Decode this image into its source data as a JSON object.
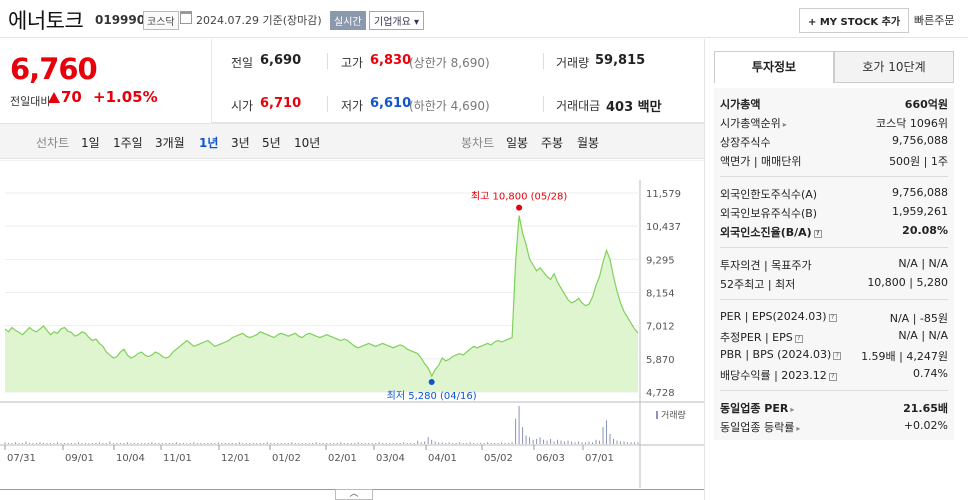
{
  "header": {
    "name": "에너토크",
    "code": "019990",
    "market": "코스닥",
    "date": "2024.07.29 기준(장마감)",
    "live_label": "실시간",
    "company_btn": "기업개요",
    "mystock_btn": "+ MY STOCK 추가",
    "quick_order": "빠른주문"
  },
  "price": {
    "current": "6,760",
    "change_label": "전일대비",
    "change": "70",
    "change_pct": "+1.05%"
  },
  "stats": {
    "prev_label": "전일",
    "prev": "6,690",
    "high_label": "고가",
    "high": "6,830",
    "upper_limit": "(상한가 8,690)",
    "volume_label": "거래량",
    "volume": "59,815",
    "open_label": "시가",
    "open": "6,710",
    "low_label": "저가",
    "low": "6,610",
    "lower_limit": "(하한가 4,690)",
    "amount_label": "거래대금",
    "amount": "403 백만"
  },
  "toolbar": {
    "line_label": "선차트",
    "line_periods": [
      "1일",
      "1주일",
      "3개월",
      "1년",
      "3년",
      "5년",
      "10년"
    ],
    "selected_period": "1년",
    "candle_label": "봉차트",
    "candle_periods": [
      "일봉",
      "주봉",
      "월봉"
    ]
  },
  "chart_data": {
    "type": "area",
    "y_ticks": [
      "11,579",
      "10,437",
      "9,295",
      "8,154",
      "7,012",
      "5,870",
      "4,728"
    ],
    "ylim": [
      4728,
      11579
    ],
    "x_ticks": [
      "07/31",
      "09/01",
      "10/04",
      "11/01",
      "12/01",
      "01/02",
      "02/01",
      "03/04",
      "04/01",
      "05/02",
      "06/03",
      "07/01"
    ],
    "high_annotation": "최고 10,800 (05/28)",
    "low_annotation": "최저 5,280 (04/16)",
    "high_value": 10800,
    "low_value": 5280,
    "volume_label": "거래량",
    "series": [
      {
        "values": [
          6900,
          6800,
          6950,
          6850,
          6780,
          6700,
          6820,
          6950,
          6850,
          6800,
          6900,
          7000,
          6850,
          6700,
          6800,
          6750,
          6900,
          6950,
          6820,
          6780,
          6650,
          6700,
          6800,
          6750,
          6600,
          6500,
          6550,
          6400,
          6300,
          6100,
          6000,
          5900,
          5950,
          6100,
          6200,
          6000,
          5900,
          5950,
          6050,
          6100,
          6000,
          5950,
          6000,
          6100,
          6050,
          5950,
          5900,
          5950,
          6100,
          6200,
          6300,
          6400,
          6500,
          6400,
          6300,
          6350,
          6400,
          6450,
          6500,
          6400,
          6300,
          6350,
          6400,
          6450,
          6500,
          6600,
          6650,
          6700,
          6750,
          6650,
          6600,
          6650,
          6700,
          6800,
          6750,
          6700,
          6650,
          6600,
          6700,
          6750,
          6700,
          6650,
          6700,
          6750,
          6650,
          6600,
          6700,
          6750,
          6700,
          6650,
          6600,
          6650,
          6700,
          6650,
          6600,
          6550,
          6500,
          6550,
          6500,
          6400,
          6300,
          6250,
          6300,
          6350,
          6400,
          6350,
          6300,
          6350,
          6400,
          6350,
          6300,
          6250,
          6300,
          6350,
          6300,
          6200,
          6150,
          6100,
          6050,
          5900,
          5700,
          5550,
          5280,
          5500,
          5650,
          5900,
          5800,
          5850,
          5950,
          6000,
          6050,
          6000,
          6100,
          6200,
          6300,
          6250,
          6300,
          6350,
          6400,
          6350,
          6450,
          6500,
          6450,
          6500,
          6550,
          6600,
          9200,
          10800,
          10200,
          9800,
          9300,
          9100,
          8900,
          9000,
          8850,
          8700,
          8600,
          8800,
          8500,
          8300,
          8100,
          7900,
          7800,
          7850,
          7950,
          7800,
          7700,
          7750,
          8000,
          8400,
          8700,
          9200,
          9600,
          9300,
          8700,
          8200,
          7800,
          7500,
          7300,
          7100,
          6900,
          6760
        ]
      }
    ],
    "volume": [
      2,
      1,
      1,
      2,
      1,
      1,
      3,
      1,
      1,
      1,
      2,
      1,
      1,
      1,
      1,
      2,
      1,
      1,
      1,
      1,
      1,
      2,
      1,
      1,
      1,
      1,
      1,
      2,
      1,
      1,
      3,
      1,
      1,
      1,
      1,
      2,
      1,
      1,
      1,
      1,
      1,
      1,
      2,
      1,
      1,
      1,
      1,
      1,
      1,
      2,
      1,
      1,
      1,
      1,
      2,
      1,
      1,
      1,
      1,
      1,
      1,
      2,
      1,
      1,
      1,
      1,
      1,
      2,
      1,
      1,
      1,
      1,
      1,
      1,
      1,
      2,
      1,
      1,
      1,
      1,
      1,
      1,
      2,
      1,
      1,
      1,
      1,
      1,
      1,
      2,
      1,
      1,
      1,
      1,
      1,
      1,
      2,
      1,
      1,
      1,
      1,
      2,
      1,
      1,
      1,
      1,
      1,
      2,
      1,
      1,
      1,
      1,
      1,
      1,
      2,
      1,
      1,
      1,
      4,
      2,
      3,
      8,
      5,
      3,
      2,
      2,
      1,
      2,
      1,
      1,
      2,
      1,
      1,
      2,
      1,
      1,
      1,
      1,
      2,
      1,
      1,
      1,
      2,
      1,
      1,
      2,
      30,
      45,
      20,
      10,
      8,
      5,
      6,
      8,
      5,
      4,
      6,
      3,
      5,
      4,
      3,
      4,
      3,
      2,
      3,
      2,
      2,
      3,
      2,
      5,
      4,
      20,
      28,
      12,
      6,
      4,
      3,
      3,
      2,
      2,
      2,
      2
    ]
  },
  "info_tabs": [
    "투자정보",
    "호가 10단계"
  ],
  "info": {
    "market_cap_label": "시가총액",
    "market_cap": "660억원",
    "market_cap_rank_label": "시가총액순위",
    "market_cap_rank": "코스닥 1096위",
    "shares_label": "상장주식수",
    "shares": "9,756,088",
    "face_label": "액면가 | 매매단위",
    "face": "500원 | 1주",
    "foreign_limit_label": "외국인한도주식수(A)",
    "foreign_limit": "9,756,088",
    "foreign_hold_label": "외국인보유주식수(B)",
    "foreign_hold": "1,959,261",
    "foreign_ratio_label": "외국인소진율(B/A)",
    "foreign_ratio": "20.08%",
    "opinion_label": "투자의견 | 목표주가",
    "opinion": "N/A | N/A",
    "week52_label": "52주최고 | 최저",
    "week52": "10,800 | 5,280",
    "per_label": "PER | EPS(2024.03)",
    "per": "N/A | -85원",
    "est_per_label": "추정PER | EPS",
    "est_per": "N/A | N/A",
    "pbr_label": "PBR | BPS (2024.03)",
    "pbr": "1.59배 | 4,247원",
    "div_label": "배당수익률 | 2023.12",
    "div": "0.74%",
    "sector_per_label": "동일업종 PER",
    "sector_per": "21.65배",
    "sector_rate_label": "동일업종 등락률",
    "sector_rate": "+0.02%"
  },
  "colors": {
    "up": "#e7000b",
    "down": "#1155cc",
    "line": "#7fd05a",
    "fill": "#dff5cf"
  }
}
